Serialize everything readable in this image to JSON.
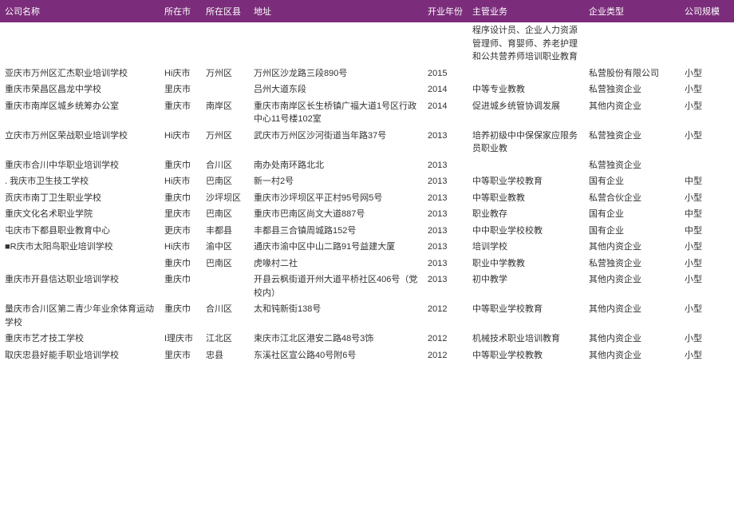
{
  "header_bg": "#7b2d7b",
  "header_fg": "#ffffff",
  "columns": [
    {
      "key": "name",
      "label": "公司名称"
    },
    {
      "key": "city",
      "label": "所在市"
    },
    {
      "key": "district",
      "label": "所在区县"
    },
    {
      "key": "address",
      "label": "地址"
    },
    {
      "key": "year",
      "label": "开业年份"
    },
    {
      "key": "business",
      "label": "主管业务"
    },
    {
      "key": "type",
      "label": "企业类型"
    },
    {
      "key": "scale",
      "label": "公司规模"
    }
  ],
  "rows": [
    {
      "name": "",
      "city": "",
      "district": "",
      "address": "",
      "year": "",
      "business": "程序设计员、企业人力资源管理师、育婴师、养老护理和公共营养师培训职业教育",
      "type": "",
      "scale": ""
    },
    {
      "name": "亚庆市万州区汇杰职业培训学校",
      "city": "Hi庆市",
      "district": "万州区",
      "address": "万州区沙龙路三段890号",
      "year": "2015",
      "business": "",
      "type": "私营股份有限公司",
      "scale": "小型"
    },
    {
      "name": "重庆市荣昌区昌龙中学校",
      "city": "里庆市",
      "district": "",
      "address": "吕州大道东段",
      "year": "2014",
      "business": "中等专业教教",
      "type": "私营独资企业",
      "scale": "小型"
    },
    {
      "name": "重庆市南岸区城乡统筹办公室",
      "city": "重庆市",
      "district": "南岸区",
      "address": "重庆市南岸区长生桥镇广福大道1号区行政中心11号楼102室",
      "year": "2014",
      "business": "促进城乡统管协调发展",
      "type": "其他内资企业",
      "scale": "小型"
    },
    {
      "name": "立庆市万州区荣战职业培训学校",
      "city": "Hi庆市",
      "district": "万州区",
      "address": "武庆市万州区沙河街道当年路37号",
      "year": "2013",
      "business": "培养初级中中保保家应限务员职业教",
      "type": "私营独资企业",
      "scale": "小型"
    },
    {
      "name": "重庆市合川中华职业培训学校",
      "city": "重庆巾",
      "district": "合川区",
      "address": "南办处南环路北北",
      "year": "2013",
      "business": "",
      "type": "私营独资企业",
      "scale": ""
    },
    {
      "name": ". 我庆市卫生技工学校",
      "city": "Hi庆市",
      "district": "巴南区",
      "address": "新一村2号",
      "year": "2013",
      "business": "中等职业学校教育",
      "type": "国有企业",
      "scale": "中型"
    },
    {
      "name": "贡庆市南丁卫生职业学校",
      "city": "重庆巾",
      "district": "沙坪坝区",
      "address": "重庆市沙坪坝区平正村95号网5号",
      "year": "2013",
      "business": "中等职业教教",
      "type": "私营合伙企业",
      "scale": "小型"
    },
    {
      "name": "重庆文化名术职业学院",
      "city": "里庆市",
      "district": "巴南区",
      "address": "重庆市巴南区尚文大道887号",
      "year": "2013",
      "business": "职业教存",
      "type": "国有企业",
      "scale": "中型"
    },
    {
      "name": "屯庆市下都县职业教育中心",
      "city": "更庆市",
      "district": "丰都县",
      "address": "丰都县三合镇周城路152号",
      "year": "2013",
      "business": "中中职业学校校教",
      "type": "国有企业",
      "scale": "中型"
    },
    {
      "name": "■R庆市太阳鸟职业培训学校",
      "city": "Hi庆市",
      "district": "渝中区",
      "address": "通庆市渝中区中山二路91号益建大厦",
      "year": "2013",
      "business": "培训学校",
      "type": "其他内资企业",
      "scale": "小型"
    },
    {
      "name": "",
      "city": "重庆巾",
      "district": "巴南区",
      "address": "虎喙村二社",
      "year": "2013",
      "business": "职业中学教教",
      "type": "私营独资企业",
      "scale": "小型"
    },
    {
      "name": "重庆市开县信达职业培训学校",
      "city": "重庆巾",
      "district": "",
      "address": "开县云枫街道开州大道平桥社区406号（党校内）",
      "year": "2013",
      "business": "初中教学",
      "type": "其他内资企业",
      "scale": "小型"
    },
    {
      "name": "量庆市合川区第二青少年业余体育运动学校",
      "city": "重庆巾",
      "district": "合川区",
      "address": "太和钝新街138号",
      "year": "2012",
      "business": "中等职业学校教育",
      "type": "其他内资企业",
      "scale": "小型"
    },
    {
      "name": "重庆市艺才技工学校",
      "city": "I理庆市",
      "district": "江北区",
      "address": "束庆市江北区港安二路48号3饰",
      "year": "2012",
      "business": "机械技术职业培训教育",
      "type": "其他内资企业",
      "scale": "小型"
    },
    {
      "name": "取庆忠县好能手职业培训学校",
      "city": "里庆市",
      "district": "忠县",
      "address": "东溪社区宣公路40号附6号",
      "year": "2012",
      "business": "中等职业学校教教",
      "type": "其他内资企业",
      "scale": "小型"
    }
  ]
}
